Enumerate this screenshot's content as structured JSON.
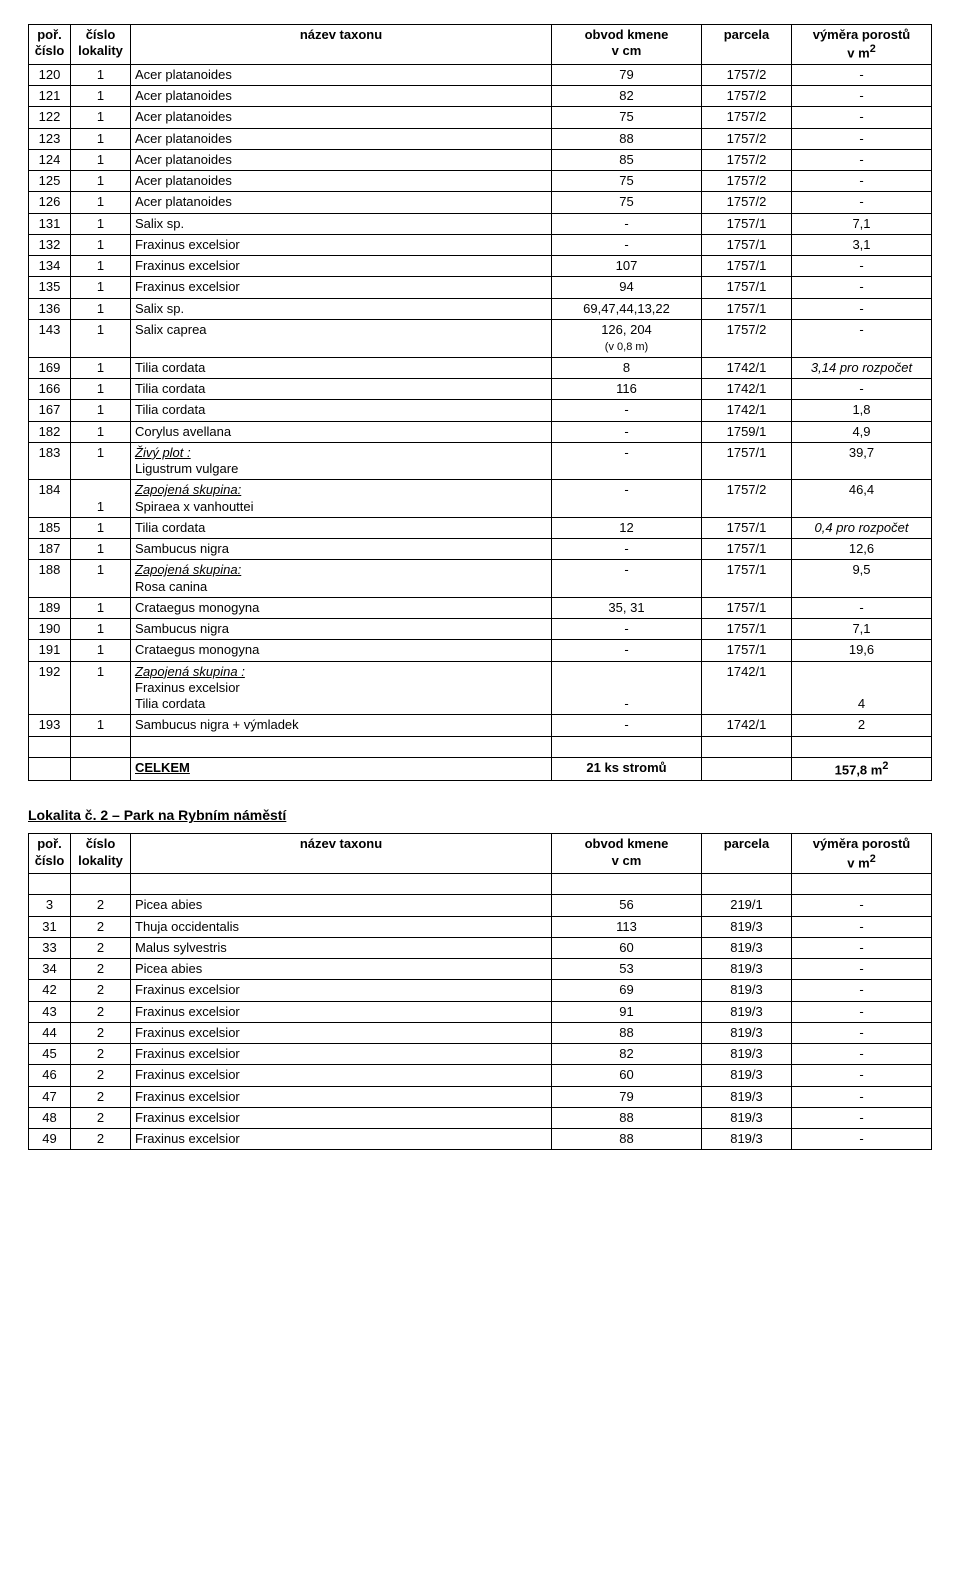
{
  "table1": {
    "headers": {
      "por": "poř.\nčíslo",
      "lok": "číslo\nlokality",
      "name": "název taxonu",
      "obvod": "obvod kmene\nv cm",
      "parcela": "parcela",
      "vymera_top": "výměra porostů",
      "vymera_unit": "v m",
      "vymera_sup": "2"
    },
    "rows": [
      {
        "por": "120",
        "lok": "1",
        "name": "Acer platanoides",
        "obvod": "79",
        "parc": "1757/2",
        "vym": "-"
      },
      {
        "por": "121",
        "lok": "1",
        "name": "Acer platanoides",
        "obvod": "82",
        "parc": "1757/2",
        "vym": "-"
      },
      {
        "por": "122",
        "lok": "1",
        "name": "Acer platanoides",
        "obvod": "75",
        "parc": "1757/2",
        "vym": "-"
      },
      {
        "por": "123",
        "lok": "1",
        "name": "Acer platanoides",
        "obvod": "88",
        "parc": "1757/2",
        "vym": "-"
      },
      {
        "por": "124",
        "lok": "1",
        "name": "Acer platanoides",
        "obvod": "85",
        "parc": "1757/2",
        "vym": "-"
      },
      {
        "por": "125",
        "lok": "1",
        "name": "Acer platanoides",
        "obvod": "75",
        "parc": "1757/2",
        "vym": "-"
      },
      {
        "por": "126",
        "lok": "1",
        "name": "Acer platanoides",
        "obvod": "75",
        "parc": "1757/2",
        "vym": "-"
      },
      {
        "por": "131",
        "lok": "1",
        "name": "Salix sp.",
        "obvod": "-",
        "parc": "1757/1",
        "vym": "7,1"
      },
      {
        "por": "132",
        "lok": "1",
        "name": "Fraxinus excelsior",
        "obvod": "-",
        "parc": "1757/1",
        "vym": "3,1"
      },
      {
        "por": "134",
        "lok": "1",
        "name": "Fraxinus excelsior",
        "obvod": "107",
        "parc": "1757/1",
        "vym": "-"
      },
      {
        "por": "135",
        "lok": "1",
        "name": "Fraxinus excelsior",
        "obvod": "94",
        "parc": "1757/1",
        "vym": "-"
      },
      {
        "por": "136",
        "lok": "1",
        "name": "Salix sp.",
        "obvod": "69,47,44,13,22",
        "parc": "1757/1",
        "vym": "-"
      },
      {
        "por": "143",
        "lok": "1",
        "name": "Salix caprea",
        "obvod_main": "126, 204",
        "obvod_sub": "(v 0,8 m)",
        "parc": "1757/2",
        "vym": "-",
        "obvod_two": true
      },
      {
        "por": "169",
        "lok": "1",
        "name": "Tilia cordata",
        "obvod": "8",
        "parc": "1742/1",
        "vym": "3,14 pro rozpočet",
        "vym_italic": true
      },
      {
        "por": "166",
        "lok": "1",
        "name": "Tilia cordata",
        "obvod": "116",
        "parc": "1742/1",
        "vym": "-"
      },
      {
        "por": "167",
        "lok": "1",
        "name": "Tilia cordata",
        "obvod": "-",
        "parc": "1742/1",
        "vym": "1,8"
      },
      {
        "por": "182",
        "lok": "1",
        "name": "Corylus avellana",
        "obvod": "-",
        "parc": "1759/1",
        "vym": "4,9"
      },
      {
        "por": "183",
        "lok": "1",
        "name_top": "Živý plot :",
        "name_sub": "Ligustrum vulgare",
        "obvod": "-",
        "parc": "1757/1",
        "vym": "39,7",
        "two": true
      },
      {
        "por": "184",
        "lok": "1",
        "lok_bottom": true,
        "name_top": "Zapojená skupina:",
        "name_sub": "Spiraea x vanhouttei",
        "obvod": "-",
        "parc": "1757/2",
        "vym": "46,4",
        "two": true
      },
      {
        "por": "185",
        "lok": "1",
        "name": "Tilia cordata",
        "obvod": "12",
        "parc": "1757/1",
        "vym": "0,4 pro rozpočet",
        "vym_italic": true
      },
      {
        "por": "187",
        "lok": "1",
        "name": "Sambucus nigra",
        "obvod": "-",
        "parc": "1757/1",
        "vym": "12,6"
      },
      {
        "por": "188",
        "lok": "1",
        "name_top": "Zapojená skupina:",
        "name_sub": "Rosa canina",
        "obvod": "-",
        "parc": "1757/1",
        "vym": "9,5",
        "two": true
      },
      {
        "por": "189",
        "lok": "1",
        "name": "Crataegus monogyna",
        "obvod": "35, 31",
        "parc": "1757/1",
        "vym": "-"
      },
      {
        "por": "190",
        "lok": "1",
        "name": "Sambucus nigra",
        "obvod": "-",
        "parc": "1757/1",
        "vym": "7,1"
      },
      {
        "por": "191",
        "lok": "1",
        "name": "Crataegus monogyna",
        "obvod": "-",
        "parc": "1757/1",
        "vym": "19,6"
      },
      {
        "por": "192",
        "lok": "1",
        "name_top": "Zapojená skupina :",
        "name_mid": "Fraxinus excelsior",
        "name_sub": "Tilia cordata",
        "obvod": "-",
        "obvod_bottom": true,
        "parc": "1742/1",
        "vym": "4",
        "vym_bottom": true,
        "three": true
      },
      {
        "por": "193",
        "lok": "1",
        "name": "Sambucus nigra + výmladek",
        "obvod": "-",
        "parc": "1742/1",
        "vym": "2"
      }
    ],
    "total": {
      "label": "CELKEM",
      "obvod": "21 ks stromů",
      "vym": "157,8 m",
      "sup": "2"
    }
  },
  "section2_title": "Lokalita č. 2 – Park na Rybním náměstí",
  "table2": {
    "rows": [
      {
        "por": "3",
        "lok": "2",
        "name": "Picea abies",
        "obvod": "56",
        "parc": "219/1",
        "vym": "-"
      },
      {
        "por": "31",
        "lok": "2",
        "name": "Thuja occidentalis",
        "obvod": "113",
        "parc": "819/3",
        "vym": "-"
      },
      {
        "por": "33",
        "lok": "2",
        "name": "Malus sylvestris",
        "obvod": "60",
        "parc": "819/3",
        "vym": "-"
      },
      {
        "por": "34",
        "lok": "2",
        "name": "Picea abies",
        "obvod": "53",
        "parc": "819/3",
        "vym": "-"
      },
      {
        "por": "42",
        "lok": "2",
        "name": "Fraxinus excelsior",
        "obvod": "69",
        "parc": "819/3",
        "vym": "-"
      },
      {
        "por": "43",
        "lok": "2",
        "name": "Fraxinus excelsior",
        "obvod": "91",
        "parc": "819/3",
        "vym": "-"
      },
      {
        "por": "44",
        "lok": "2",
        "name": "Fraxinus excelsior",
        "obvod": "88",
        "parc": "819/3",
        "vym": "-"
      },
      {
        "por": "45",
        "lok": "2",
        "name": "Fraxinus excelsior",
        "obvod": "82",
        "parc": "819/3",
        "vym": "-"
      },
      {
        "por": "46",
        "lok": "2",
        "name": "Fraxinus excelsior",
        "obvod": "60",
        "parc": "819/3",
        "vym": "-"
      },
      {
        "por": "47",
        "lok": "2",
        "name": "Fraxinus excelsior",
        "obvod": "79",
        "parc": "819/3",
        "vym": "-"
      },
      {
        "por": "48",
        "lok": "2",
        "name": "Fraxinus excelsior",
        "obvod": "88",
        "parc": "819/3",
        "vym": "-"
      },
      {
        "por": "49",
        "lok": "2",
        "name": "Fraxinus excelsior",
        "obvod": "88",
        "parc": "819/3",
        "vym": "-"
      }
    ]
  }
}
